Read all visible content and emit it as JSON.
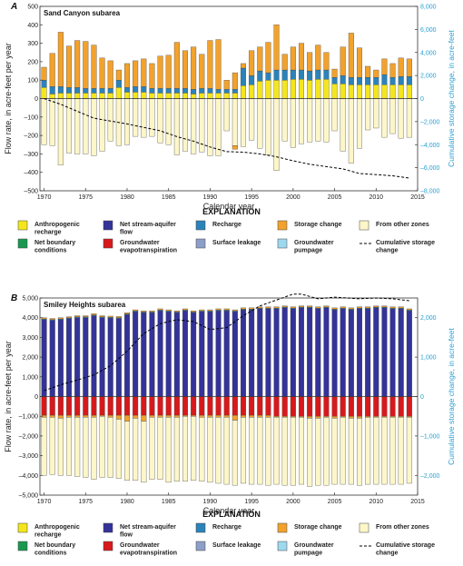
{
  "colors": {
    "anthropogenic_recharge": "#f5e61c",
    "net_stream_aquifer_flow": "#333399",
    "recharge": "#2b83ba",
    "storage_change": "#f2a22c",
    "from_other_zones": "#fdf6c8",
    "net_boundary_conditions": "#1a9850",
    "groundwater_evapotranspiration": "#d7191c",
    "surface_leakage": "#8c9fc8",
    "groundwater_pumpage": "#9ed8ef",
    "cumulative_line": "#000000",
    "right_axis": "#2a9fd1"
  },
  "legend": {
    "title": "EXPLANATION",
    "items": [
      {
        "key": "anthropogenic_recharge",
        "lines": [
          "Anthropogenic",
          "recharge"
        ],
        "kind": "swatch"
      },
      {
        "key": "net_stream_aquifer_flow",
        "lines": [
          "Net stream-aquifer",
          "flow"
        ],
        "kind": "swatch"
      },
      {
        "key": "recharge",
        "lines": [
          "Recharge"
        ],
        "kind": "swatch"
      },
      {
        "key": "storage_change",
        "lines": [
          "Storage change"
        ],
        "kind": "swatch"
      },
      {
        "key": "from_other_zones",
        "lines": [
          "From other zones"
        ],
        "kind": "swatch"
      },
      {
        "key": "net_boundary_conditions",
        "lines": [
          "Net boundary",
          "conditions"
        ],
        "kind": "swatch"
      },
      {
        "key": "groundwater_evapotranspiration",
        "lines": [
          "Groundwater",
          "evapotranspiration"
        ],
        "kind": "swatch"
      },
      {
        "key": "surface_leakage",
        "lines": [
          "Surface leakage"
        ],
        "kind": "swatch"
      },
      {
        "key": "groundwater_pumpage",
        "lines": [
          "Groundwater",
          "pumpage"
        ],
        "kind": "swatch"
      },
      {
        "key": "cumulative_line",
        "lines": [
          "Cumulative storage",
          "change"
        ],
        "kind": "line"
      }
    ]
  },
  "chart_data": [
    {
      "panel_label": "A",
      "type": "bar",
      "title": "Sand Canyon subarea",
      "xlabel": "Calendar year",
      "ylabel": "Flow rate, in acre-feet per year",
      "y2label": "Cumulative storage change, in acre-feet",
      "xlim": [
        1969.5,
        2015
      ],
      "ylim": [
        -500,
        500
      ],
      "y2lim": [
        -8000,
        8000
      ],
      "xticks": [
        1970,
        1975,
        1980,
        1985,
        1990,
        1995,
        2000,
        2005,
        2010,
        2015
      ],
      "yticks": [
        500,
        400,
        300,
        200,
        100,
        0,
        -100,
        -200,
        -300,
        -400,
        -500
      ],
      "yticklabels": [
        "500",
        "400",
        "300",
        "200",
        "100",
        "0",
        "–100",
        "–200",
        "–300",
        "–400",
        "–500"
      ],
      "y2ticks": [
        8000,
        6000,
        4000,
        2000,
        0,
        -2000,
        -4000,
        -6000,
        -8000
      ],
      "y2ticklabels": [
        "8,000",
        "6,000",
        "4,000",
        "2,000",
        "0",
        "–2,000",
        "–4,000",
        "–6,000",
        "–8,000"
      ],
      "years": [
        1970,
        1971,
        1972,
        1973,
        1974,
        1975,
        1976,
        1977,
        1978,
        1979,
        1980,
        1981,
        1982,
        1983,
        1984,
        1985,
        1986,
        1987,
        1988,
        1989,
        1990,
        1991,
        1992,
        1993,
        1994,
        1995,
        1996,
        1997,
        1998,
        1999,
        2000,
        2001,
        2002,
        2003,
        2004,
        2005,
        2006,
        2007,
        2008,
        2009,
        2010,
        2011,
        2012,
        2013,
        2014
      ],
      "positive_series": [
        {
          "key": "anthropogenic_recharge",
          "values": [
            60,
            25,
            30,
            30,
            30,
            30,
            30,
            30,
            30,
            60,
            35,
            35,
            35,
            30,
            30,
            30,
            30,
            30,
            25,
            30,
            30,
            30,
            30,
            30,
            70,
            75,
            95,
            100,
            100,
            100,
            105,
            105,
            100,
            105,
            105,
            80,
            80,
            75,
            75,
            75,
            75,
            75,
            75,
            75,
            75
          ]
        },
        {
          "key": "recharge",
          "values": [
            40,
            40,
            35,
            30,
            30,
            25,
            25,
            25,
            25,
            40,
            25,
            30,
            30,
            25,
            25,
            25,
            25,
            25,
            25,
            25,
            25,
            20,
            20,
            20,
            95,
            50,
            55,
            40,
            55,
            55,
            50,
            50,
            50,
            50,
            50,
            35,
            45,
            40,
            40,
            40,
            40,
            55,
            40,
            45,
            45
          ]
        },
        {
          "key": "storage_change",
          "values": [
            70,
            180,
            295,
            225,
            255,
            255,
            235,
            165,
            150,
            55,
            130,
            140,
            150,
            135,
            175,
            180,
            250,
            205,
            230,
            185,
            260,
            270,
            50,
            90,
            25,
            135,
            130,
            165,
            245,
            85,
            125,
            145,
            100,
            135,
            95,
            45,
            155,
            240,
            160,
            60,
            40,
            85,
            75,
            100,
            95
          ]
        }
      ],
      "negative_series": [
        {
          "key": "from_other_zones",
          "values": [
            -250,
            -255,
            -360,
            -295,
            -300,
            -300,
            -310,
            -285,
            -230,
            -255,
            -250,
            -205,
            -210,
            -205,
            -240,
            -250,
            -305,
            -285,
            -300,
            -290,
            -310,
            -310,
            -175,
            -255,
            -260,
            -225,
            -270,
            -305,
            -390,
            -230,
            -265,
            -245,
            -235,
            -230,
            -235,
            -175,
            -285,
            -350,
            -270,
            -170,
            -160,
            -210,
            -190,
            -215,
            -210
          ]
        },
        {
          "key": "storage_change",
          "values": [
            0,
            0,
            0,
            0,
            0,
            0,
            0,
            0,
            0,
            0,
            0,
            0,
            0,
            0,
            0,
            0,
            0,
            0,
            0,
            0,
            0,
            0,
            0,
            -20,
            0,
            0,
            0,
            0,
            0,
            0,
            0,
            0,
            0,
            0,
            0,
            0,
            0,
            0,
            0,
            0,
            0,
            0,
            0,
            0,
            0
          ]
        }
      ],
      "cumulative": {
        "x": [
          1970,
          1972,
          1974,
          1976,
          1978,
          1980,
          1982,
          1984,
          1986,
          1988,
          1990,
          1992,
          1994,
          1996,
          1998,
          2000,
          2002,
          2004,
          2006,
          2008,
          2010,
          2012,
          2014
        ],
        "y": [
          0,
          -500,
          -1100,
          -1700,
          -1950,
          -2200,
          -2500,
          -2800,
          -3300,
          -3700,
          -4200,
          -4600,
          -4650,
          -4800,
          -5050,
          -5400,
          -5700,
          -5900,
          -6100,
          -6500,
          -6600,
          -6700,
          -6900
        ]
      }
    },
    {
      "panel_label": "B",
      "type": "bar",
      "title": "Smiley Heights subarea",
      "xlabel": "Calendar year",
      "ylabel": "Flow rate, in acre-feet per year",
      "y2label": "Cumulative storage change, in acre-feet",
      "xlim": [
        1969.5,
        2015
      ],
      "ylim": [
        -5000,
        5000
      ],
      "y2lim": [
        -2500,
        2500
      ],
      "xticks": [
        1970,
        1975,
        1980,
        1985,
        1990,
        1995,
        2000,
        2005,
        2010,
        2015
      ],
      "yticks": [
        5000,
        4000,
        3000,
        2000,
        1000,
        0,
        -1000,
        -2000,
        -3000,
        -4000,
        -5000
      ],
      "yticklabels": [
        "5,000",
        "4,000",
        "3,000",
        "2,000",
        "1,000",
        "0",
        "–1,000",
        "–2,000",
        "–3,000",
        "–4,000",
        "–5,000"
      ],
      "y2ticks": [
        2000,
        1000,
        0,
        -1000,
        -2000
      ],
      "y2ticklabels": [
        "2,000",
        "1,000",
        "0",
        "–1,000",
        "–2,000"
      ],
      "years": [
        1970,
        1971,
        1972,
        1973,
        1974,
        1975,
        1976,
        1977,
        1978,
        1979,
        1980,
        1981,
        1982,
        1983,
        1984,
        1985,
        1986,
        1987,
        1988,
        1989,
        1990,
        1991,
        1992,
        1993,
        1994,
        1995,
        1996,
        1997,
        1998,
        1999,
        2000,
        2001,
        2002,
        2003,
        2004,
        2005,
        2006,
        2007,
        2008,
        2009,
        2010,
        2011,
        2012,
        2013,
        2014
      ],
      "positive_series": [
        {
          "key": "net_stream_aquifer_flow",
          "values": [
            3900,
            3860,
            3900,
            3950,
            4000,
            4000,
            4100,
            4000,
            3980,
            3960,
            4150,
            4300,
            4250,
            4250,
            4350,
            4300,
            4250,
            4350,
            4250,
            4300,
            4300,
            4350,
            4350,
            4300,
            4400,
            4400,
            4450,
            4450,
            4450,
            4500,
            4450,
            4500,
            4500,
            4450,
            4500,
            4400,
            4450,
            4400,
            4450,
            4450,
            4500,
            4500,
            4450,
            4450,
            4350
          ]
        },
        {
          "key": "recharge",
          "values": [
            40,
            40,
            40,
            40,
            40,
            40,
            40,
            40,
            40,
            40,
            40,
            40,
            40,
            40,
            40,
            40,
            40,
            40,
            40,
            40,
            40,
            40,
            40,
            40,
            40,
            40,
            40,
            40,
            40,
            40,
            40,
            40,
            40,
            40,
            40,
            40,
            40,
            40,
            40,
            40,
            40,
            40,
            40,
            40,
            40
          ]
        },
        {
          "key": "storage_change",
          "values": [
            60,
            60,
            60,
            60,
            60,
            60,
            60,
            60,
            60,
            60,
            60,
            60,
            60,
            60,
            60,
            60,
            60,
            60,
            60,
            60,
            60,
            60,
            60,
            60,
            60,
            60,
            60,
            60,
            60,
            60,
            60,
            60,
            60,
            60,
            60,
            60,
            60,
            60,
            60,
            60,
            60,
            60,
            60,
            60,
            60
          ]
        }
      ],
      "negative_series": [
        {
          "key": "groundwater_evapotranspiration",
          "values": [
            -950,
            -950,
            -950,
            -950,
            -950,
            -950,
            -950,
            -950,
            -950,
            -950,
            -950,
            -950,
            -950,
            -950,
            -950,
            -950,
            -950,
            -950,
            -950,
            -950,
            -950,
            -950,
            -950,
            -950,
            -950,
            -950,
            -950,
            -950,
            -1000,
            -1000,
            -1000,
            -1000,
            -1000,
            -1000,
            -1000,
            -1000,
            -1000,
            -1000,
            -1000,
            -1000,
            -1000,
            -1000,
            -1000,
            -1000,
            -1000
          ]
        },
        {
          "key": "storage_change",
          "values": [
            -100,
            -100,
            -150,
            -100,
            -100,
            -100,
            -100,
            -50,
            -100,
            -200,
            -300,
            -150,
            -300,
            -100,
            -100,
            -100,
            -100,
            -50,
            -50,
            -100,
            -100,
            -100,
            -100,
            -250,
            -100,
            -100,
            -100,
            -100,
            -50,
            -50,
            -50,
            -50,
            -100,
            -100,
            -50,
            -100,
            -50,
            -100,
            -100,
            -50,
            -50,
            -50,
            -50,
            -50,
            -50
          ]
        },
        {
          "key": "from_other_zones",
          "values": [
            -2950,
            -2900,
            -2900,
            -2950,
            -3000,
            -3050,
            -3150,
            -3100,
            -3050,
            -3000,
            -3000,
            -3150,
            -3100,
            -3150,
            -3150,
            -3300,
            -3250,
            -3300,
            -3250,
            -3250,
            -3300,
            -3350,
            -3400,
            -3300,
            -3350,
            -3400,
            -3400,
            -3450,
            -3400,
            -3450,
            -3450,
            -3400,
            -3450,
            -3400,
            -3450,
            -3350,
            -3400,
            -3350,
            -3400,
            -3400,
            -3400,
            -3400,
            -3400,
            -3400,
            -3350
          ]
        }
      ],
      "cumulative": {
        "x": [
          1970,
          1972,
          1974,
          1976,
          1978,
          1980,
          1982,
          1984,
          1986,
          1988,
          1990,
          1992,
          1994,
          1996,
          1998,
          2000,
          2001,
          2003,
          2005,
          2008,
          2010,
          2012,
          2014
        ],
        "y": [
          150,
          300,
          420,
          550,
          780,
          1150,
          1600,
          1850,
          1950,
          1900,
          1700,
          1750,
          2050,
          2300,
          2450,
          2600,
          2600,
          2480,
          2520,
          2480,
          2500,
          2480,
          2430
        ]
      }
    }
  ]
}
